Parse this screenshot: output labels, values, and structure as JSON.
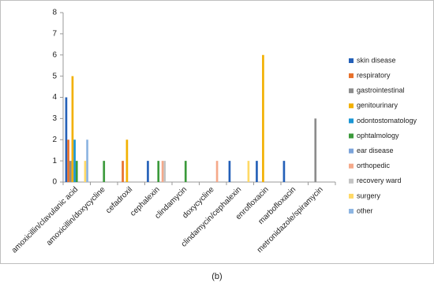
{
  "chart_data": {
    "type": "bar",
    "categories": [
      "amoxicillin/clavulanic acid",
      "amoxicillin/doxycycline",
      "cefadroxil",
      "cephalexin",
      "clindamycin",
      "doxycycline",
      "clindamycin/cephalexin",
      "enrofloxacin",
      "marbofloxacin",
      "metronidazole/spiramycin"
    ],
    "series": [
      {
        "name": "skin disease",
        "color": "#2460b8",
        "values": [
          4,
          0,
          0,
          1,
          0,
          0,
          1,
          1,
          1,
          0
        ]
      },
      {
        "name": "respiratory",
        "color": "#e8702a",
        "values": [
          2,
          0,
          1,
          0,
          0,
          0,
          0,
          0,
          0,
          0
        ]
      },
      {
        "name": "gastrointestinal",
        "color": "#8c8c8c",
        "values": [
          1,
          0,
          0,
          0,
          0,
          0,
          0,
          0,
          0,
          3
        ]
      },
      {
        "name": "genitourinary",
        "color": "#f2b000",
        "values": [
          5,
          0,
          2,
          0,
          0,
          0,
          0,
          6,
          0,
          0
        ]
      },
      {
        "name": "odontostomatology",
        "color": "#1b96d4",
        "values": [
          2,
          0,
          0,
          0,
          0,
          0,
          0,
          0,
          0,
          0
        ]
      },
      {
        "name": "ophtalmology",
        "color": "#3b9a3b",
        "values": [
          1,
          1,
          0,
          1,
          1,
          0,
          0,
          0,
          0,
          0
        ]
      },
      {
        "name": "ear disease",
        "color": "#7ba3d9",
        "values": [
          0,
          0,
          0,
          0,
          0,
          0,
          0,
          0,
          0,
          0
        ]
      },
      {
        "name": "orthopedic",
        "color": "#f5a98a",
        "values": [
          0,
          0,
          0,
          1,
          0,
          1,
          0,
          0,
          0,
          0
        ]
      },
      {
        "name": "recovery ward",
        "color": "#c3c3c3",
        "values": [
          0,
          0,
          0,
          1,
          0,
          0,
          0,
          0,
          0,
          0
        ]
      },
      {
        "name": "surgery",
        "color": "#ffd966",
        "values": [
          1,
          0,
          0,
          0,
          0,
          0,
          1,
          0,
          0,
          0
        ]
      },
      {
        "name": "other",
        "color": "#8db5e2",
        "values": [
          2,
          0,
          0,
          0,
          0,
          0,
          0,
          0,
          0,
          0
        ]
      }
    ],
    "ylim": [
      0,
      8
    ],
    "yticks": [
      0,
      1,
      2,
      3,
      4,
      5,
      6,
      7,
      8
    ],
    "grid": false,
    "legend": "right"
  },
  "caption": "(b)"
}
